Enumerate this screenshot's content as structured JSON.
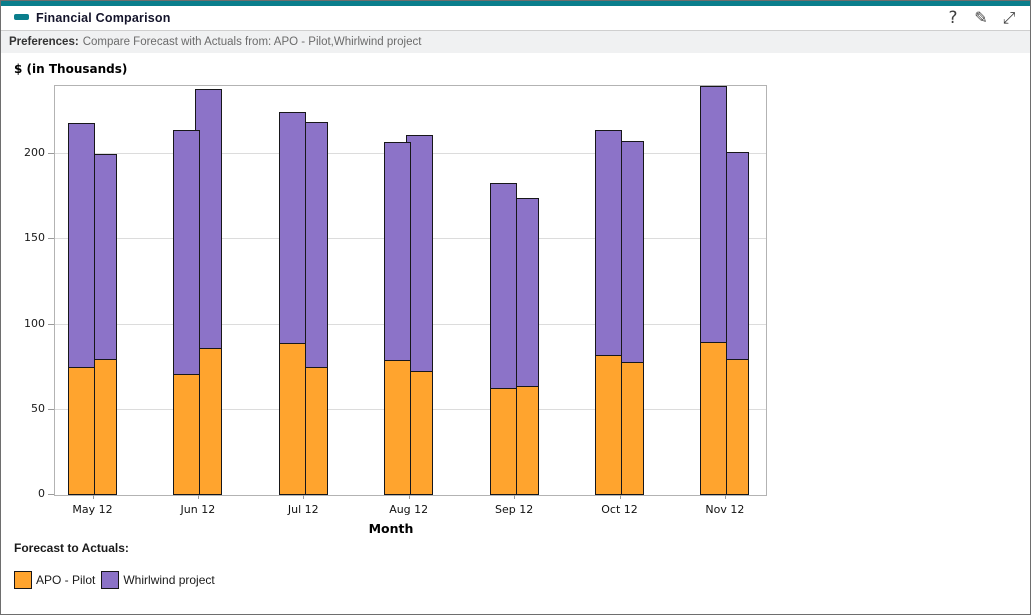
{
  "window_title": "Financial Comparison",
  "header": {
    "collapse_icon": "minus",
    "help_glyph": "?",
    "edit_glyph": "✎",
    "resize_glyph": "⤢"
  },
  "preferences": {
    "label": "Preferences:",
    "value": "Compare Forecast with Actuals from: APO - Pilot,Whirlwind project"
  },
  "chart_data": {
    "type": "bar",
    "stacked": true,
    "grouped": true,
    "title": "$ (in Thousands)",
    "ylabel": "$ (in Thousands)",
    "xlabel": "Month",
    "categories": [
      "May 12",
      "Jun 12",
      "Jul 12",
      "Aug 12",
      "Sep 12",
      "Oct 12",
      "Nov 12"
    ],
    "yticks": [
      0,
      50,
      100,
      150,
      200
    ],
    "ylim": [
      0,
      240
    ],
    "grid": true,
    "series": [
      {
        "name": "Forecast - APO - Pilot",
        "stack_group": "Forecast",
        "project": "APO - Pilot",
        "color": "#FFA42E",
        "values": [
          75,
          71,
          89,
          79,
          63,
          82,
          90
        ]
      },
      {
        "name": "Forecast - Whirlwind project",
        "stack_group": "Forecast",
        "project": "Whirlwind project",
        "color": "#8C73C8",
        "values": [
          143,
          143,
          136,
          128,
          120,
          132,
          150
        ]
      },
      {
        "name": "Actuals - APO - Pilot",
        "stack_group": "Actuals",
        "project": "APO - Pilot",
        "color": "#FFA42E",
        "values": [
          80,
          86,
          75,
          73,
          64,
          78,
          80
        ]
      },
      {
        "name": "Actuals - Whirlwind project",
        "stack_group": "Actuals",
        "project": "Whirlwind project",
        "color": "#8C73C8",
        "values": [
          120,
          152,
          144,
          138,
          110,
          130,
          121
        ]
      }
    ],
    "stack_totals": {
      "forecast": [
        218,
        214,
        225,
        207,
        183,
        214,
        240
      ],
      "actuals": [
        200,
        238,
        219,
        211,
        182,
        208,
        200
      ]
    },
    "legend_position": "bottom-left"
  },
  "legend": {
    "title": "Forecast to Actuals:",
    "items": [
      {
        "label": "APO - Pilot",
        "color": "#FFA42E"
      },
      {
        "label": "Whirlwind project",
        "color": "#8C73C8"
      }
    ]
  },
  "colors": {
    "accent_teal": "#0A7E8C",
    "bar_orange": "#FFA42E",
    "bar_purple": "#8C73C8",
    "bar_outline": "#17171A",
    "prefs_bg": "#F0F1F2",
    "gridline": "#DCDCDC",
    "plot_border": "#B3B3B3"
  }
}
